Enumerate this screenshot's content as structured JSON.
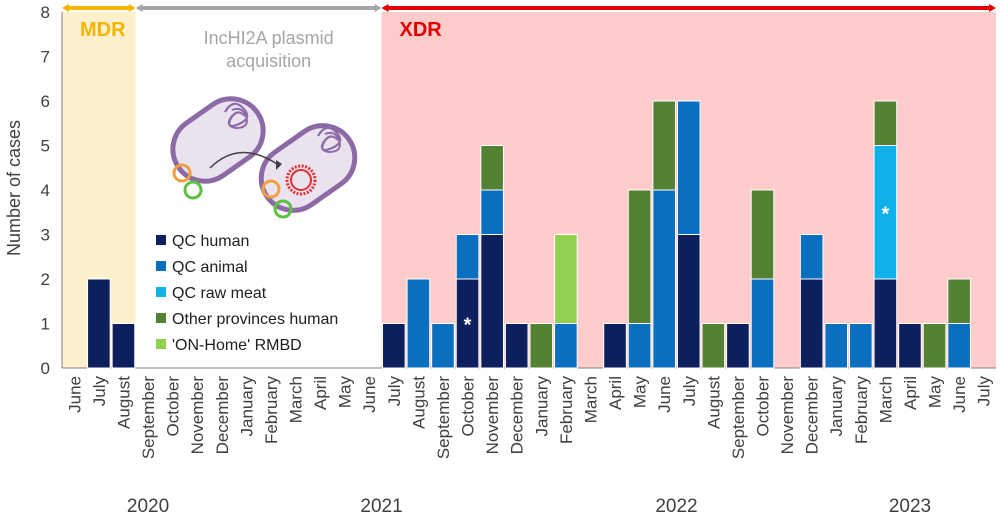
{
  "chart_data": {
    "type": "bar",
    "stacked": true,
    "xlabel": "",
    "ylabel": "Number of cases",
    "ylim": [
      0,
      8
    ],
    "yticks": [
      0,
      1,
      2,
      3,
      4,
      5,
      6,
      7,
      8
    ],
    "grid": false,
    "categories": [
      "June",
      "July",
      "August",
      "September",
      "October",
      "November",
      "December",
      "January",
      "February",
      "March",
      "April",
      "May",
      "June",
      "July",
      "August",
      "September",
      "October",
      "November",
      "December",
      "January",
      "February",
      "March",
      "April",
      "May",
      "June",
      "July",
      "August",
      "September",
      "October",
      "November",
      "December",
      "January",
      "February",
      "March",
      "April",
      "May",
      "June",
      "July"
    ],
    "year_labels": [
      {
        "label": "2020",
        "start": 0,
        "end": 6
      },
      {
        "label": "2021",
        "start": 7,
        "end": 18
      },
      {
        "label": "2022",
        "start": 19,
        "end": 30
      },
      {
        "label": "2023",
        "start": 31,
        "end": 37
      }
    ],
    "phases": [
      {
        "label": "MDR",
        "start": 0,
        "end": 2,
        "color": "#f5b400",
        "background": "#fdf0cc"
      },
      {
        "label": "",
        "start": 3,
        "end": 13,
        "color": "#a6a6a6",
        "background": "#ffffff"
      },
      {
        "label": "XDR",
        "start": 13,
        "end": 37,
        "color": "#e00000",
        "background": "#ffcccc"
      }
    ],
    "plasmid_note": "IncHI2A plasmid acquisition",
    "series": [
      {
        "name": "QC human",
        "color": "#0d1f5c",
        "values": [
          0,
          2,
          1,
          0,
          0,
          0,
          0,
          0,
          0,
          0,
          0,
          0,
          0,
          1,
          0,
          0,
          2,
          3,
          1,
          0,
          0,
          0,
          1,
          0,
          0,
          3,
          0,
          1,
          0,
          0,
          2,
          0,
          0,
          2,
          1,
          0,
          0,
          0
        ]
      },
      {
        "name": "QC animal",
        "color": "#0b6fbf",
        "values": [
          0,
          0,
          0,
          0,
          0,
          0,
          0,
          0,
          0,
          0,
          0,
          0,
          0,
          0,
          2,
          1,
          1,
          1,
          0,
          0,
          1,
          0,
          0,
          1,
          4,
          3,
          0,
          0,
          2,
          0,
          1,
          1,
          1,
          0,
          0,
          0,
          1,
          0
        ]
      },
      {
        "name": "QC raw meat",
        "color": "#10b0e8",
        "values": [
          0,
          0,
          0,
          0,
          0,
          0,
          0,
          0,
          0,
          0,
          0,
          0,
          0,
          0,
          0,
          0,
          0,
          0,
          0,
          0,
          0,
          0,
          0,
          0,
          0,
          0,
          0,
          0,
          0,
          0,
          0,
          0,
          0,
          3,
          0,
          0,
          0,
          0
        ]
      },
      {
        "name": "Other provinces human",
        "color": "#548235",
        "values": [
          0,
          0,
          0,
          0,
          0,
          0,
          0,
          0,
          0,
          0,
          0,
          0,
          0,
          0,
          0,
          0,
          0,
          1,
          0,
          1,
          0,
          0,
          0,
          3,
          2,
          0,
          1,
          0,
          2,
          0,
          0,
          0,
          0,
          1,
          0,
          1,
          1,
          0
        ]
      },
      {
        "name": "'ON-Home' RMBD",
        "color": "#92d050",
        "values": [
          0,
          0,
          0,
          0,
          0,
          0,
          0,
          0,
          0,
          0,
          0,
          0,
          0,
          0,
          0,
          0,
          0,
          0,
          0,
          0,
          2,
          0,
          0,
          0,
          0,
          0,
          0,
          0,
          0,
          0,
          0,
          0,
          0,
          0,
          0,
          0,
          0,
          0
        ]
      }
    ],
    "annotations": [
      {
        "category_index": 16,
        "series": "QC human",
        "text": "*"
      },
      {
        "category_index": 33,
        "series": "QC raw meat",
        "text": "*"
      }
    ]
  }
}
